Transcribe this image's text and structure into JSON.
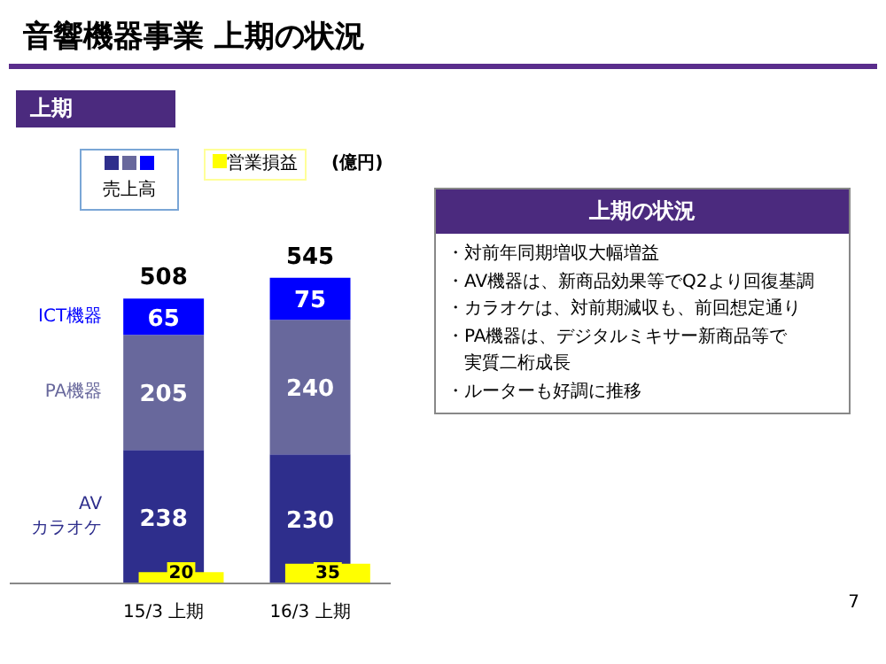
{
  "chart_data": {
    "type": "bar",
    "title": "音響機器事業 上期の状況",
    "subtitle": "上期",
    "legend_title": "売上高",
    "categories": [
      "15/3 上期",
      "16/3 上期"
    ],
    "stacked": true,
    "data_labels": true,
    "totals": [
      "508",
      "545"
    ],
    "tick_labels": "x",
    "grid": false,
    "legend": "top",
    "series": [
      {
        "name": "AV\nカラオケ",
        "color": "#2e2e8c",
        "values": [
          238,
          230
        ]
      },
      {
        "name": "PA機器",
        "color": "#68689c",
        "values": [
          205,
          240
        ]
      },
      {
        "name": "ICT機器",
        "color": "#0000ff",
        "values": [
          65,
          75
        ]
      },
      {
        "name": "営業損益",
        "axis": "y2",
        "color": "#ffff00",
        "values": [
          20,
          35
        ]
      }
    ],
    "annotations": [
      "(億円)",
      "上期の状況",
      "・対前年同期増収大幅増益",
      "・AV機器は、新商品効果等でQ2より回復基調",
      "・カラオケは、対前期減収も、前回想定通り",
      "・PA機器は、デジタルミキサー新商品等で",
      "　実質二桁成長",
      "・ルーターも好調に推移",
      "7"
    ]
  }
}
